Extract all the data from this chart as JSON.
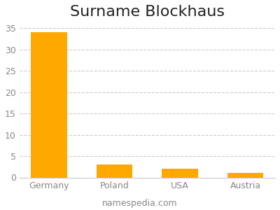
{
  "title": "Surname Blockhaus",
  "categories": [
    "Germany",
    "Poland",
    "USA",
    "Austria"
  ],
  "values": [
    34,
    3,
    2,
    1
  ],
  "bar_color": "#FFA800",
  "ylim": [
    0,
    36
  ],
  "yticks": [
    0,
    5,
    10,
    15,
    20,
    25,
    30,
    35
  ],
  "grid_color": "#cccccc",
  "background_color": "#ffffff",
  "footer_text": "namespedia.com",
  "title_fontsize": 16,
  "tick_fontsize": 9,
  "footer_fontsize": 9
}
